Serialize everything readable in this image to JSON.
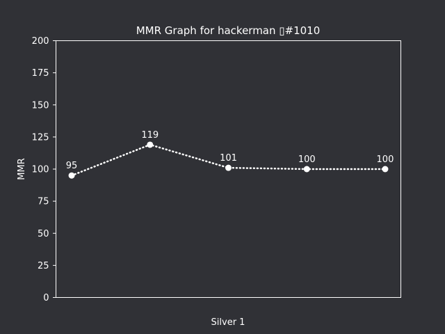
{
  "chart_data": {
    "type": "line",
    "title": "MMR Graph for hackerman ▯#1010",
    "xlabel": "Silver 1",
    "ylabel": "MMR",
    "x": [
      1,
      2,
      3,
      4,
      5
    ],
    "values": [
      95,
      119,
      101,
      100,
      100
    ],
    "data_labels": [
      "95",
      "119",
      "101",
      "100",
      "100"
    ],
    "ylim": [
      0,
      200
    ],
    "yticks": [
      "0",
      "25",
      "50",
      "75",
      "100",
      "125",
      "150",
      "175",
      "200"
    ],
    "ytick_values": [
      0,
      25,
      50,
      75,
      100,
      125,
      150,
      175,
      200
    ],
    "line_style": "dotted",
    "grid": false,
    "colors": {
      "background": "#303136",
      "line": "#ffffff",
      "text": "#ffffff",
      "axes": "#ffffff"
    }
  }
}
